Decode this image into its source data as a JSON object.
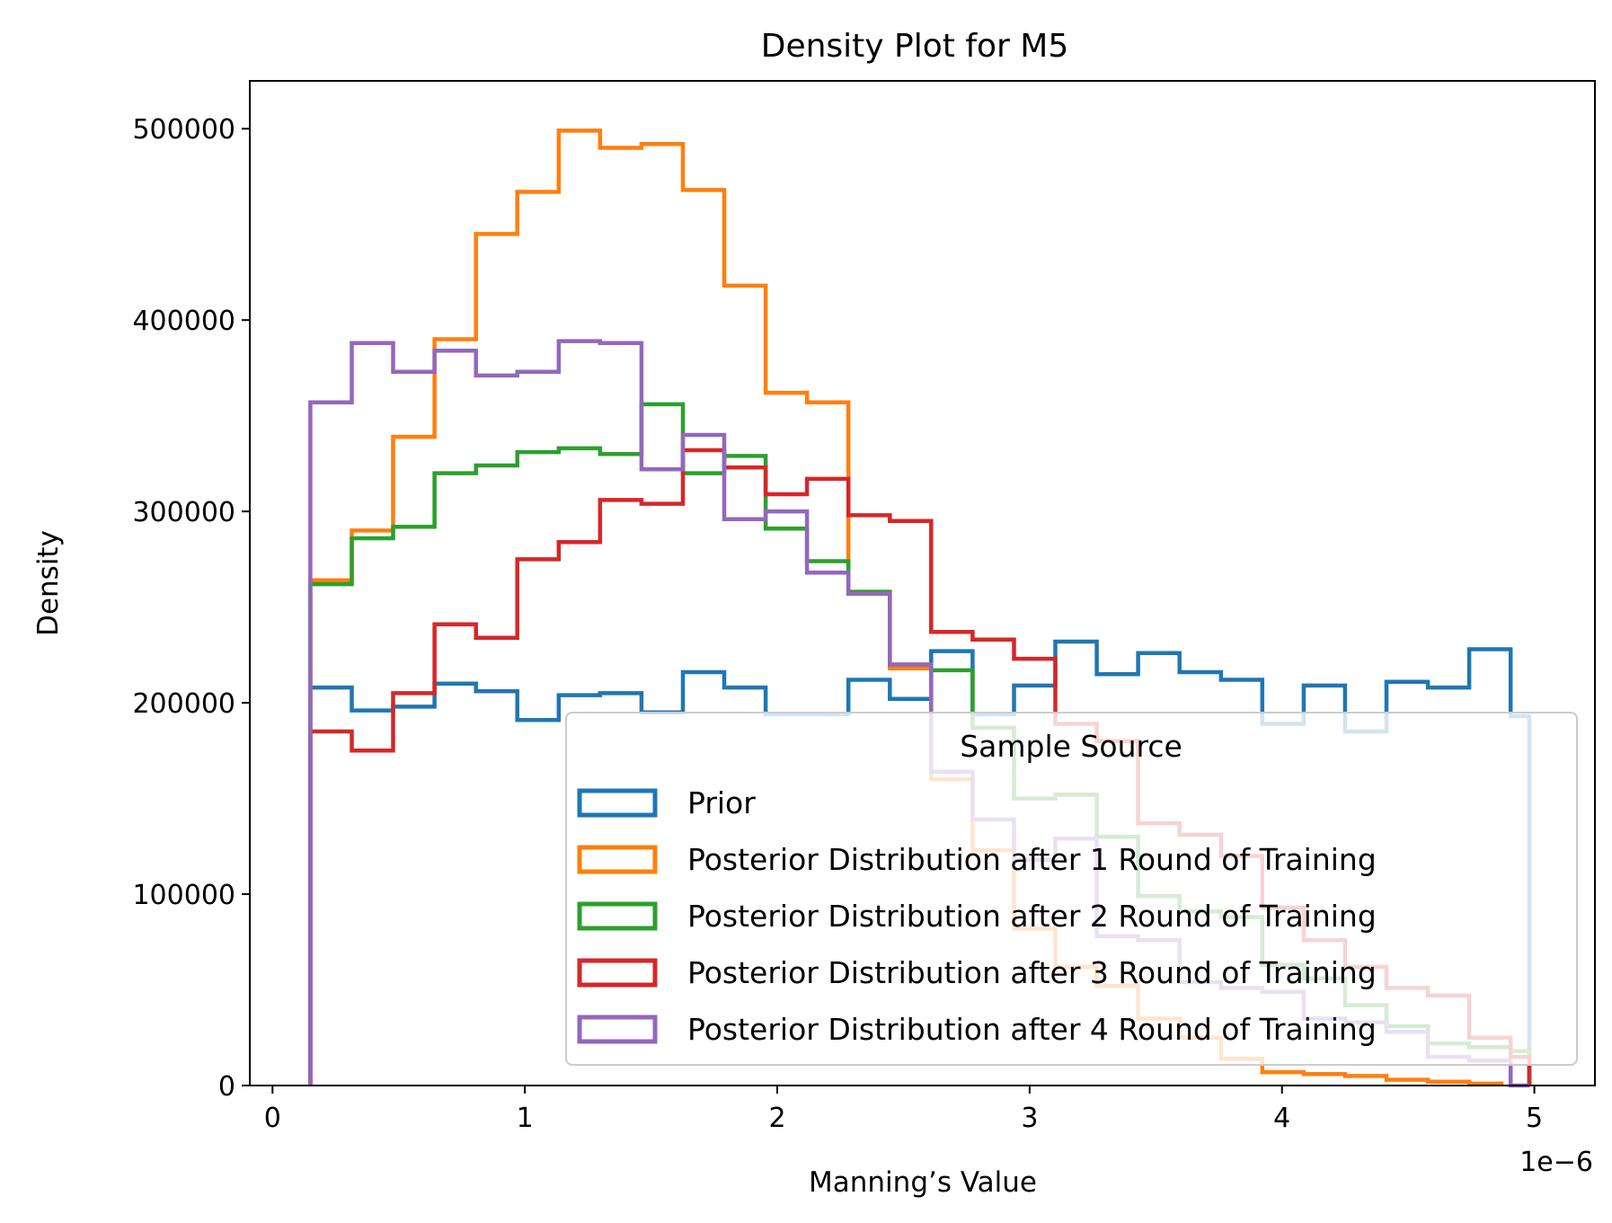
{
  "chart_data": {
    "type": "step-histogram",
    "title": "Density Plot for M5",
    "xlabel": "Manning’s Value",
    "ylabel": "Density",
    "x_offset_text": "1e−6",
    "x_scale_factor": 1e-06,
    "xlim": [
      -0.09,
      5.24
    ],
    "ylim": [
      0,
      525000
    ],
    "x_ticks": [
      0,
      1,
      2,
      3,
      4,
      5
    ],
    "x_tick_labels": [
      "0",
      "1",
      "2",
      "3",
      "4",
      "5"
    ],
    "y_ticks": [
      0,
      100000,
      200000,
      300000,
      400000,
      500000
    ],
    "y_tick_labels": [
      "0",
      "100000",
      "200000",
      "300000",
      "400000",
      "500000"
    ],
    "grid": false,
    "bin_edges": [
      0.15,
      0.314,
      0.478,
      0.642,
      0.806,
      0.97,
      1.134,
      1.298,
      1.462,
      1.626,
      1.79,
      1.954,
      2.118,
      2.282,
      2.446,
      2.61,
      2.774,
      2.938,
      3.102,
      3.266,
      3.43,
      3.594,
      3.758,
      3.922,
      4.086,
      4.25,
      4.414,
      4.578,
      4.742,
      4.906
    ],
    "legend": {
      "title": "Sample Source",
      "position": "lower right",
      "alpha": 0.8
    },
    "series": [
      {
        "name": "Prior",
        "color": "#1f77b4",
        "density": [
          208000,
          196000,
          198000,
          210000,
          206000,
          191000,
          204000,
          205000,
          195000,
          216000,
          208000,
          194000,
          194000,
          212000,
          202000,
          227000,
          194000,
          209000,
          232000,
          215000,
          226000,
          216000,
          212000,
          189000,
          209000,
          185000,
          211000,
          208000,
          228000,
          193000
        ],
        "last_edge": 4.98
      },
      {
        "name": "Posterior Distribution after 1 Round of Training",
        "color": "#ff7f0e",
        "density": [
          264000,
          290000,
          339000,
          390000,
          445000,
          467000,
          499000,
          490000,
          492000,
          468000,
          418000,
          362000,
          357000,
          258000,
          218000,
          160000,
          123000,
          82000,
          62000,
          52000,
          35000,
          25000,
          14000,
          7000,
          6000,
          5000,
          3000,
          2000,
          1000
        ],
        "last_edge": 4.87
      },
      {
        "name": "Posterior Distribution after 2 Round of Training",
        "color": "#2ca02c",
        "density": [
          262000,
          286000,
          292000,
          320000,
          324000,
          331000,
          333000,
          330000,
          356000,
          320000,
          329000,
          291000,
          274000,
          258000,
          220000,
          217000,
          187000,
          150000,
          152000,
          130000,
          99000,
          91000,
          88000,
          63000,
          56000,
          42000,
          31000,
          22000,
          20000,
          18000
        ],
        "last_edge": 4.98
      },
      {
        "name": "Posterior Distribution after 3 Round of Training",
        "color": "#d62728",
        "density": [
          185000,
          175000,
          205000,
          241000,
          234000,
          275000,
          284000,
          306000,
          304000,
          332000,
          323000,
          309000,
          317000,
          298000,
          295000,
          237000,
          233000,
          223000,
          189000,
          180000,
          137000,
          131000,
          120000,
          93000,
          76000,
          62000,
          51000,
          47000,
          25000,
          15000
        ],
        "last_edge": 4.98
      },
      {
        "name": "Posterior Distribution after 4 Round of Training",
        "color": "#9467bd",
        "density": [
          357000,
          388000,
          373000,
          384000,
          371000,
          373000,
          389000,
          388000,
          322000,
          340000,
          296000,
          300000,
          268000,
          257000,
          220000,
          164000,
          139000,
          118000,
          129000,
          78000,
          76000,
          54000,
          51000,
          49000,
          35000,
          33000,
          28000,
          15000,
          13000,
          0
        ],
        "last_edge": 4.98
      }
    ]
  }
}
